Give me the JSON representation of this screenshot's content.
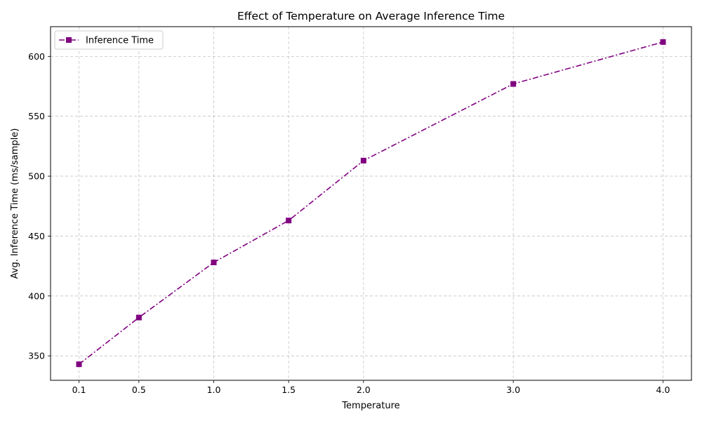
{
  "chart_data": {
    "type": "line",
    "title": "Effect of Temperature on Average Inference Time",
    "xlabel": "Temperature",
    "ylabel": "Avg. Inference Time (ms/sample)",
    "x": [
      0.1,
      0.5,
      1.0,
      1.5,
      2.0,
      3.0,
      4.0
    ],
    "x_tick_labels": [
      "0.1",
      "0.5",
      "1.0",
      "1.5",
      "2.0",
      "3.0",
      "4.0"
    ],
    "y_ticks": [
      350,
      400,
      450,
      500,
      550,
      600
    ],
    "y_tick_labels": [
      "350",
      "400",
      "450",
      "500",
      "550",
      "600"
    ],
    "xlim": [
      -0.09,
      4.19
    ],
    "ylim": [
      329.6,
      624.8
    ],
    "grid": true,
    "legend_position": "upper-left",
    "series": [
      {
        "name": "Inference Time",
        "values": [
          343,
          382,
          428,
          463,
          513,
          577,
          612
        ],
        "color": "#800080",
        "line_style": "dash-dot",
        "marker": "square"
      }
    ]
  }
}
